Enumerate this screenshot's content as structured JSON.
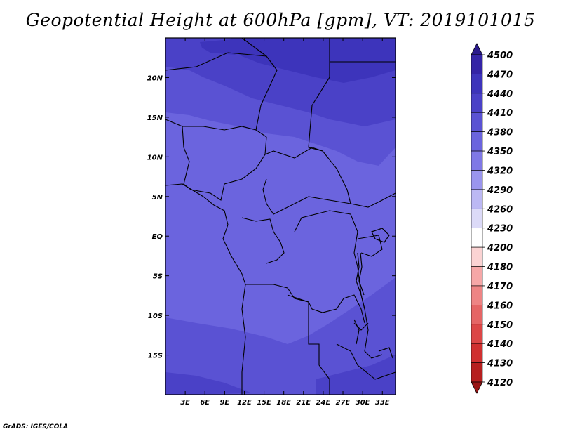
{
  "title": "Geopotential Height at 600hPa [gpm], VT: 2019101015",
  "credit": "GrADS: IGES/COLA",
  "chart_data": {
    "type": "heatmap",
    "variable": "Geopotential Height",
    "level": "600hPa",
    "unit": "gpm",
    "valid_time": "2019101015",
    "x_ticks": [
      "3E",
      "6E",
      "9E",
      "12E",
      "15E",
      "18E",
      "21E",
      "24E",
      "27E",
      "30E",
      "33E"
    ],
    "x_tick_values": [
      3,
      6,
      9,
      12,
      15,
      18,
      21,
      24,
      27,
      30,
      33
    ],
    "y_ticks": [
      "20N",
      "15N",
      "10N",
      "5N",
      "EQ",
      "5S",
      "10S",
      "15S"
    ],
    "y_tick_values": [
      20,
      15,
      10,
      5,
      0,
      -5,
      -10,
      -15
    ],
    "lon_range": [
      0,
      35
    ],
    "lat_range": [
      -20,
      25
    ],
    "colorbar_levels": [
      "4500",
      "4470",
      "4440",
      "4410",
      "4380",
      "4350",
      "4320",
      "4290",
      "4260",
      "4230",
      "4200",
      "4180",
      "4170",
      "4160",
      "4150",
      "4140",
      "4130",
      "4120"
    ],
    "colorbar_colors": [
      "#2a1a8c",
      "#3424a6",
      "#3d34bb",
      "#4a41c7",
      "#5a52d3",
      "#6b64de",
      "#7f78e6",
      "#9a95ee",
      "#bcb8f4",
      "#dcdaf8",
      "#ffffff",
      "#fbd3d3",
      "#f6a7a7",
      "#ee8484",
      "#e56565",
      "#dc4646",
      "#d03030",
      "#b61f1f",
      "#981515"
    ],
    "field_colors": {
      "4470": "#3d34bb",
      "4440": "#4a41c7",
      "4410": "#5a52d3",
      "4380": "#6b64de"
    }
  }
}
